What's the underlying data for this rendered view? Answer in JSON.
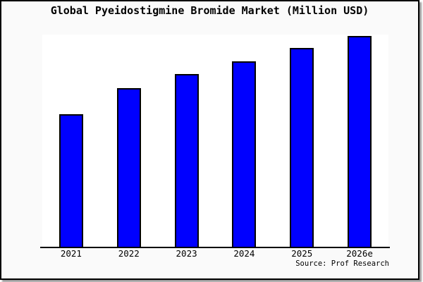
{
  "chart_data": {
    "type": "bar",
    "title": "Global Pyeidostigmine Bromide Market (Million USD)",
    "categories": [
      "2021",
      "2022",
      "2023",
      "2024",
      "2025",
      "2026e"
    ],
    "values": [
      62.8,
      75.1,
      81.8,
      87.8,
      94.3,
      100
    ],
    "note": "y-axis has no tick labels or gridlines; values are relative estimates with 2026e = 100",
    "xlabel": "",
    "ylabel": "",
    "ylim": [
      0,
      100.5
    ],
    "grid": false,
    "legend": null,
    "bar_color": "#0000ff",
    "bar_border_color": "#000000",
    "plot_bg": "#ffffff",
    "outer_bg": "#fafafa",
    "frame_border_color": "#000000",
    "source": "Source: Prof Research"
  }
}
